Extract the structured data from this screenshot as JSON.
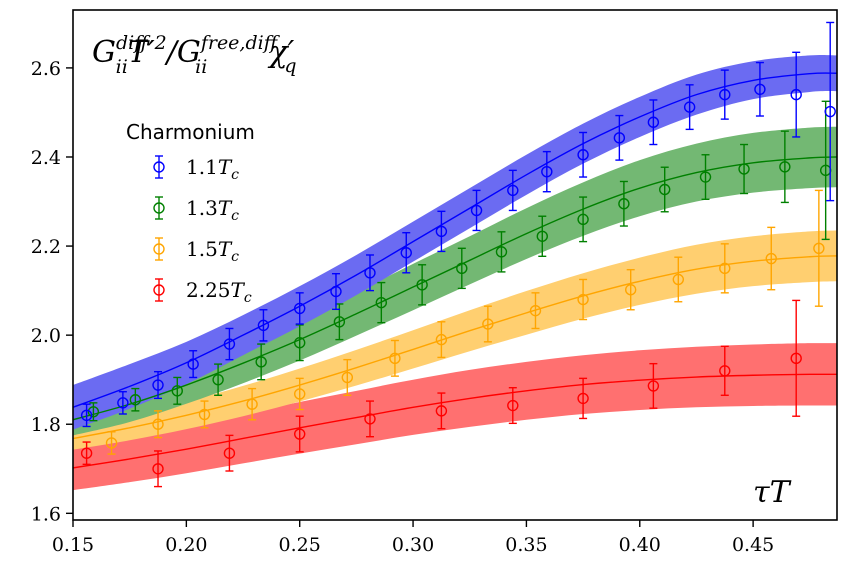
{
  "chart_data": {
    "type": "line",
    "title": "G_ii^diff T'^2 / G_ii^free,diff χ'_q",
    "xlabel": "τT",
    "ylabel": "",
    "xlim": [
      0.15,
      0.487
    ],
    "ylim": [
      1.585,
      2.73
    ],
    "xticks": [
      0.15,
      0.2,
      0.25,
      0.3,
      0.35,
      0.4,
      0.45
    ],
    "xtick_labels": [
      "0.15",
      "0.20",
      "0.25",
      "0.30",
      "0.35",
      "0.40",
      "0.45"
    ],
    "yticks": [
      1.6,
      1.8,
      2.0,
      2.2,
      2.4,
      2.6
    ],
    "ytick_labels": [
      "1.6",
      "1.8",
      "2.0",
      "2.2",
      "2.4",
      "2.6"
    ],
    "grid": false,
    "legend_title": "Charmonium",
    "legend_position": "upper-left",
    "series": [
      {
        "name": "1.1T_c",
        "color": "#0000ff",
        "band_color": "#6b6bf2",
        "band_alpha": 1.0,
        "fit_center": [
          [
            0.15,
            1.838
          ],
          [
            0.175,
            1.885
          ],
          [
            0.2,
            1.938
          ],
          [
            0.225,
            2.0
          ],
          [
            0.25,
            2.065
          ],
          [
            0.275,
            2.135
          ],
          [
            0.3,
            2.21
          ],
          [
            0.325,
            2.285
          ],
          [
            0.35,
            2.36
          ],
          [
            0.375,
            2.43
          ],
          [
            0.4,
            2.49
          ],
          [
            0.425,
            2.54
          ],
          [
            0.45,
            2.572
          ],
          [
            0.475,
            2.587
          ],
          [
            0.487,
            2.588
          ]
        ],
        "band_upper": [
          [
            0.15,
            1.888
          ],
          [
            0.175,
            1.935
          ],
          [
            0.2,
            1.985
          ],
          [
            0.225,
            2.045
          ],
          [
            0.25,
            2.11
          ],
          [
            0.275,
            2.18
          ],
          [
            0.3,
            2.255
          ],
          [
            0.325,
            2.33
          ],
          [
            0.35,
            2.405
          ],
          [
            0.375,
            2.475
          ],
          [
            0.4,
            2.535
          ],
          [
            0.425,
            2.585
          ],
          [
            0.45,
            2.615
          ],
          [
            0.475,
            2.628
          ],
          [
            0.487,
            2.628
          ]
        ],
        "band_lower": [
          [
            0.15,
            1.788
          ],
          [
            0.175,
            1.835
          ],
          [
            0.2,
            1.89
          ],
          [
            0.225,
            1.955
          ],
          [
            0.25,
            2.02
          ],
          [
            0.275,
            2.09
          ],
          [
            0.3,
            2.165
          ],
          [
            0.325,
            2.24
          ],
          [
            0.35,
            2.315
          ],
          [
            0.375,
            2.385
          ],
          [
            0.4,
            2.445
          ],
          [
            0.425,
            2.495
          ],
          [
            0.45,
            2.53
          ],
          [
            0.475,
            2.546
          ],
          [
            0.487,
            2.548
          ]
        ],
        "points": [
          {
            "x": 0.156,
            "y": 1.82,
            "err": 0.025
          },
          {
            "x": 0.172,
            "y": 1.848,
            "err": 0.025
          },
          {
            "x": 0.1875,
            "y": 1.888,
            "err": 0.03
          },
          {
            "x": 0.203,
            "y": 1.935,
            "err": 0.03
          },
          {
            "x": 0.219,
            "y": 1.98,
            "err": 0.035
          },
          {
            "x": 0.234,
            "y": 2.022,
            "err": 0.035
          },
          {
            "x": 0.25,
            "y": 2.06,
            "err": 0.035
          },
          {
            "x": 0.266,
            "y": 2.098,
            "err": 0.04
          },
          {
            "x": 0.281,
            "y": 2.14,
            "err": 0.04
          },
          {
            "x": 0.297,
            "y": 2.185,
            "err": 0.045
          },
          {
            "x": 0.3125,
            "y": 2.233,
            "err": 0.045
          },
          {
            "x": 0.328,
            "y": 2.28,
            "err": 0.045
          },
          {
            "x": 0.344,
            "y": 2.325,
            "err": 0.045
          },
          {
            "x": 0.359,
            "y": 2.367,
            "err": 0.045
          },
          {
            "x": 0.375,
            "y": 2.405,
            "err": 0.05
          },
          {
            "x": 0.391,
            "y": 2.443,
            "err": 0.05
          },
          {
            "x": 0.406,
            "y": 2.478,
            "err": 0.05
          },
          {
            "x": 0.422,
            "y": 2.512,
            "err": 0.05
          },
          {
            "x": 0.4375,
            "y": 2.54,
            "err": 0.055
          },
          {
            "x": 0.453,
            "y": 2.552,
            "err": 0.06
          },
          {
            "x": 0.469,
            "y": 2.54,
            "err": 0.095
          },
          {
            "x": 0.484,
            "y": 2.502,
            "err": 0.2
          }
        ]
      },
      {
        "name": "1.3T_c",
        "color": "#008000",
        "band_color": "#73b873",
        "band_alpha": 1.0,
        "fit_center": [
          [
            0.15,
            1.81
          ],
          [
            0.175,
            1.845
          ],
          [
            0.2,
            1.888
          ],
          [
            0.225,
            1.937
          ],
          [
            0.25,
            1.99
          ],
          [
            0.275,
            2.048
          ],
          [
            0.3,
            2.108
          ],
          [
            0.325,
            2.168
          ],
          [
            0.35,
            2.228
          ],
          [
            0.375,
            2.283
          ],
          [
            0.4,
            2.33
          ],
          [
            0.425,
            2.365
          ],
          [
            0.45,
            2.387
          ],
          [
            0.475,
            2.398
          ],
          [
            0.487,
            2.4
          ]
        ],
        "band_upper": [
          [
            0.15,
            1.845
          ],
          [
            0.175,
            1.885
          ],
          [
            0.2,
            1.93
          ],
          [
            0.225,
            1.982
          ],
          [
            0.25,
            2.037
          ],
          [
            0.275,
            2.097
          ],
          [
            0.3,
            2.16
          ],
          [
            0.325,
            2.222
          ],
          [
            0.35,
            2.285
          ],
          [
            0.375,
            2.343
          ],
          [
            0.4,
            2.393
          ],
          [
            0.425,
            2.43
          ],
          [
            0.45,
            2.454
          ],
          [
            0.475,
            2.466
          ],
          [
            0.487,
            2.468
          ]
        ],
        "band_lower": [
          [
            0.15,
            1.775
          ],
          [
            0.175,
            1.805
          ],
          [
            0.2,
            1.846
          ],
          [
            0.225,
            1.892
          ],
          [
            0.25,
            1.943
          ],
          [
            0.275,
            1.999
          ],
          [
            0.3,
            2.056
          ],
          [
            0.325,
            2.114
          ],
          [
            0.35,
            2.171
          ],
          [
            0.375,
            2.223
          ],
          [
            0.4,
            2.267
          ],
          [
            0.425,
            2.3
          ],
          [
            0.45,
            2.32
          ],
          [
            0.475,
            2.33
          ],
          [
            0.487,
            2.332
          ]
        ],
        "points": [
          {
            "x": 0.159,
            "y": 1.828,
            "err": 0.02
          },
          {
            "x": 0.1775,
            "y": 1.855,
            "err": 0.025
          },
          {
            "x": 0.196,
            "y": 1.875,
            "err": 0.03
          },
          {
            "x": 0.214,
            "y": 1.9,
            "err": 0.035
          },
          {
            "x": 0.233,
            "y": 1.94,
            "err": 0.04
          },
          {
            "x": 0.25,
            "y": 1.983,
            "err": 0.04
          },
          {
            "x": 0.2675,
            "y": 2.03,
            "err": 0.04
          },
          {
            "x": 0.286,
            "y": 2.073,
            "err": 0.045
          },
          {
            "x": 0.304,
            "y": 2.113,
            "err": 0.045
          },
          {
            "x": 0.3215,
            "y": 2.15,
            "err": 0.045
          },
          {
            "x": 0.339,
            "y": 2.187,
            "err": 0.045
          },
          {
            "x": 0.357,
            "y": 2.222,
            "err": 0.045
          },
          {
            "x": 0.375,
            "y": 2.26,
            "err": 0.05
          },
          {
            "x": 0.393,
            "y": 2.295,
            "err": 0.05
          },
          {
            "x": 0.411,
            "y": 2.327,
            "err": 0.05
          },
          {
            "x": 0.429,
            "y": 2.355,
            "err": 0.05
          },
          {
            "x": 0.446,
            "y": 2.373,
            "err": 0.055
          },
          {
            "x": 0.464,
            "y": 2.378,
            "err": 0.08
          },
          {
            "x": 0.482,
            "y": 2.37,
            "err": 0.155
          }
        ]
      },
      {
        "name": "1.5T_c",
        "color": "#ffa500",
        "band_color": "#ffcf70",
        "band_alpha": 1.0,
        "fit_center": [
          [
            0.15,
            1.768
          ],
          [
            0.175,
            1.792
          ],
          [
            0.2,
            1.82
          ],
          [
            0.225,
            1.852
          ],
          [
            0.25,
            1.888
          ],
          [
            0.275,
            1.927
          ],
          [
            0.3,
            1.968
          ],
          [
            0.325,
            2.01
          ],
          [
            0.35,
            2.05
          ],
          [
            0.375,
            2.088
          ],
          [
            0.4,
            2.121
          ],
          [
            0.425,
            2.148
          ],
          [
            0.45,
            2.166
          ],
          [
            0.475,
            2.176
          ],
          [
            0.487,
            2.178
          ]
        ],
        "band_upper": [
          [
            0.15,
            1.793
          ],
          [
            0.175,
            1.82
          ],
          [
            0.2,
            1.851
          ],
          [
            0.225,
            1.886
          ],
          [
            0.25,
            1.925
          ],
          [
            0.275,
            1.967
          ],
          [
            0.3,
            2.011
          ],
          [
            0.325,
            2.056
          ],
          [
            0.35,
            2.099
          ],
          [
            0.375,
            2.139
          ],
          [
            0.4,
            2.174
          ],
          [
            0.425,
            2.203
          ],
          [
            0.45,
            2.222
          ],
          [
            0.475,
            2.233
          ],
          [
            0.487,
            2.235
          ]
        ],
        "band_lower": [
          [
            0.15,
            1.743
          ],
          [
            0.175,
            1.764
          ],
          [
            0.2,
            1.789
          ],
          [
            0.225,
            1.818
          ],
          [
            0.25,
            1.851
          ],
          [
            0.275,
            1.887
          ],
          [
            0.3,
            1.925
          ],
          [
            0.325,
            1.964
          ],
          [
            0.35,
            2.001
          ],
          [
            0.375,
            2.037
          ],
          [
            0.4,
            2.068
          ],
          [
            0.425,
            2.093
          ],
          [
            0.45,
            2.11
          ],
          [
            0.475,
            2.119
          ],
          [
            0.487,
            2.121
          ]
        ],
        "points": [
          {
            "x": 0.167,
            "y": 1.758,
            "err": 0.025
          },
          {
            "x": 0.1875,
            "y": 1.8,
            "err": 0.03
          },
          {
            "x": 0.208,
            "y": 1.822,
            "err": 0.03
          },
          {
            "x": 0.229,
            "y": 1.845,
            "err": 0.035
          },
          {
            "x": 0.25,
            "y": 1.868,
            "err": 0.035
          },
          {
            "x": 0.271,
            "y": 1.905,
            "err": 0.04
          },
          {
            "x": 0.292,
            "y": 1.948,
            "err": 0.04
          },
          {
            "x": 0.3125,
            "y": 1.99,
            "err": 0.04
          },
          {
            "x": 0.333,
            "y": 2.025,
            "err": 0.04
          },
          {
            "x": 0.354,
            "y": 2.055,
            "err": 0.04
          },
          {
            "x": 0.375,
            "y": 2.08,
            "err": 0.045
          },
          {
            "x": 0.396,
            "y": 2.102,
            "err": 0.045
          },
          {
            "x": 0.417,
            "y": 2.125,
            "err": 0.05
          },
          {
            "x": 0.4375,
            "y": 2.15,
            "err": 0.055
          },
          {
            "x": 0.458,
            "y": 2.172,
            "err": 0.07
          },
          {
            "x": 0.479,
            "y": 2.195,
            "err": 0.13
          }
        ]
      },
      {
        "name": "2.25T_c",
        "color": "#ff0000",
        "band_color": "#ff7070",
        "band_alpha": 1.0,
        "fit_center": [
          [
            0.15,
            1.702
          ],
          [
            0.175,
            1.722
          ],
          [
            0.2,
            1.744
          ],
          [
            0.225,
            1.768
          ],
          [
            0.25,
            1.792
          ],
          [
            0.275,
            1.815
          ],
          [
            0.3,
            1.838
          ],
          [
            0.325,
            1.858
          ],
          [
            0.35,
            1.875
          ],
          [
            0.375,
            1.889
          ],
          [
            0.4,
            1.899
          ],
          [
            0.425,
            1.906
          ],
          [
            0.45,
            1.91
          ],
          [
            0.475,
            1.912
          ],
          [
            0.487,
            1.912
          ]
        ],
        "band_upper": [
          [
            0.15,
            1.752
          ],
          [
            0.175,
            1.774
          ],
          [
            0.2,
            1.798
          ],
          [
            0.225,
            1.824
          ],
          [
            0.25,
            1.85
          ],
          [
            0.275,
            1.875
          ],
          [
            0.3,
            1.9
          ],
          [
            0.325,
            1.922
          ],
          [
            0.35,
            1.94
          ],
          [
            0.375,
            1.955
          ],
          [
            0.4,
            1.966
          ],
          [
            0.425,
            1.974
          ],
          [
            0.45,
            1.979
          ],
          [
            0.475,
            1.982
          ],
          [
            0.487,
            1.982
          ]
        ],
        "band_lower": [
          [
            0.15,
            1.652
          ],
          [
            0.175,
            1.67
          ],
          [
            0.2,
            1.69
          ],
          [
            0.225,
            1.712
          ],
          [
            0.25,
            1.734
          ],
          [
            0.275,
            1.755
          ],
          [
            0.3,
            1.776
          ],
          [
            0.325,
            1.794
          ],
          [
            0.35,
            1.81
          ],
          [
            0.375,
            1.823
          ],
          [
            0.4,
            1.832
          ],
          [
            0.425,
            1.838
          ],
          [
            0.45,
            1.841
          ],
          [
            0.475,
            1.842
          ],
          [
            0.487,
            1.842
          ]
        ],
        "points": [
          {
            "x": 0.156,
            "y": 1.735,
            "err": 0.025
          },
          {
            "x": 0.1875,
            "y": 1.7,
            "err": 0.04
          },
          {
            "x": 0.219,
            "y": 1.735,
            "err": 0.04
          },
          {
            "x": 0.25,
            "y": 1.778,
            "err": 0.04
          },
          {
            "x": 0.281,
            "y": 1.812,
            "err": 0.04
          },
          {
            "x": 0.3125,
            "y": 1.83,
            "err": 0.04
          },
          {
            "x": 0.344,
            "y": 1.842,
            "err": 0.04
          },
          {
            "x": 0.375,
            "y": 1.858,
            "err": 0.045
          },
          {
            "x": 0.406,
            "y": 1.886,
            "err": 0.05
          },
          {
            "x": 0.4375,
            "y": 1.92,
            "err": 0.055
          },
          {
            "x": 0.469,
            "y": 1.948,
            "err": 0.13
          }
        ]
      }
    ]
  }
}
